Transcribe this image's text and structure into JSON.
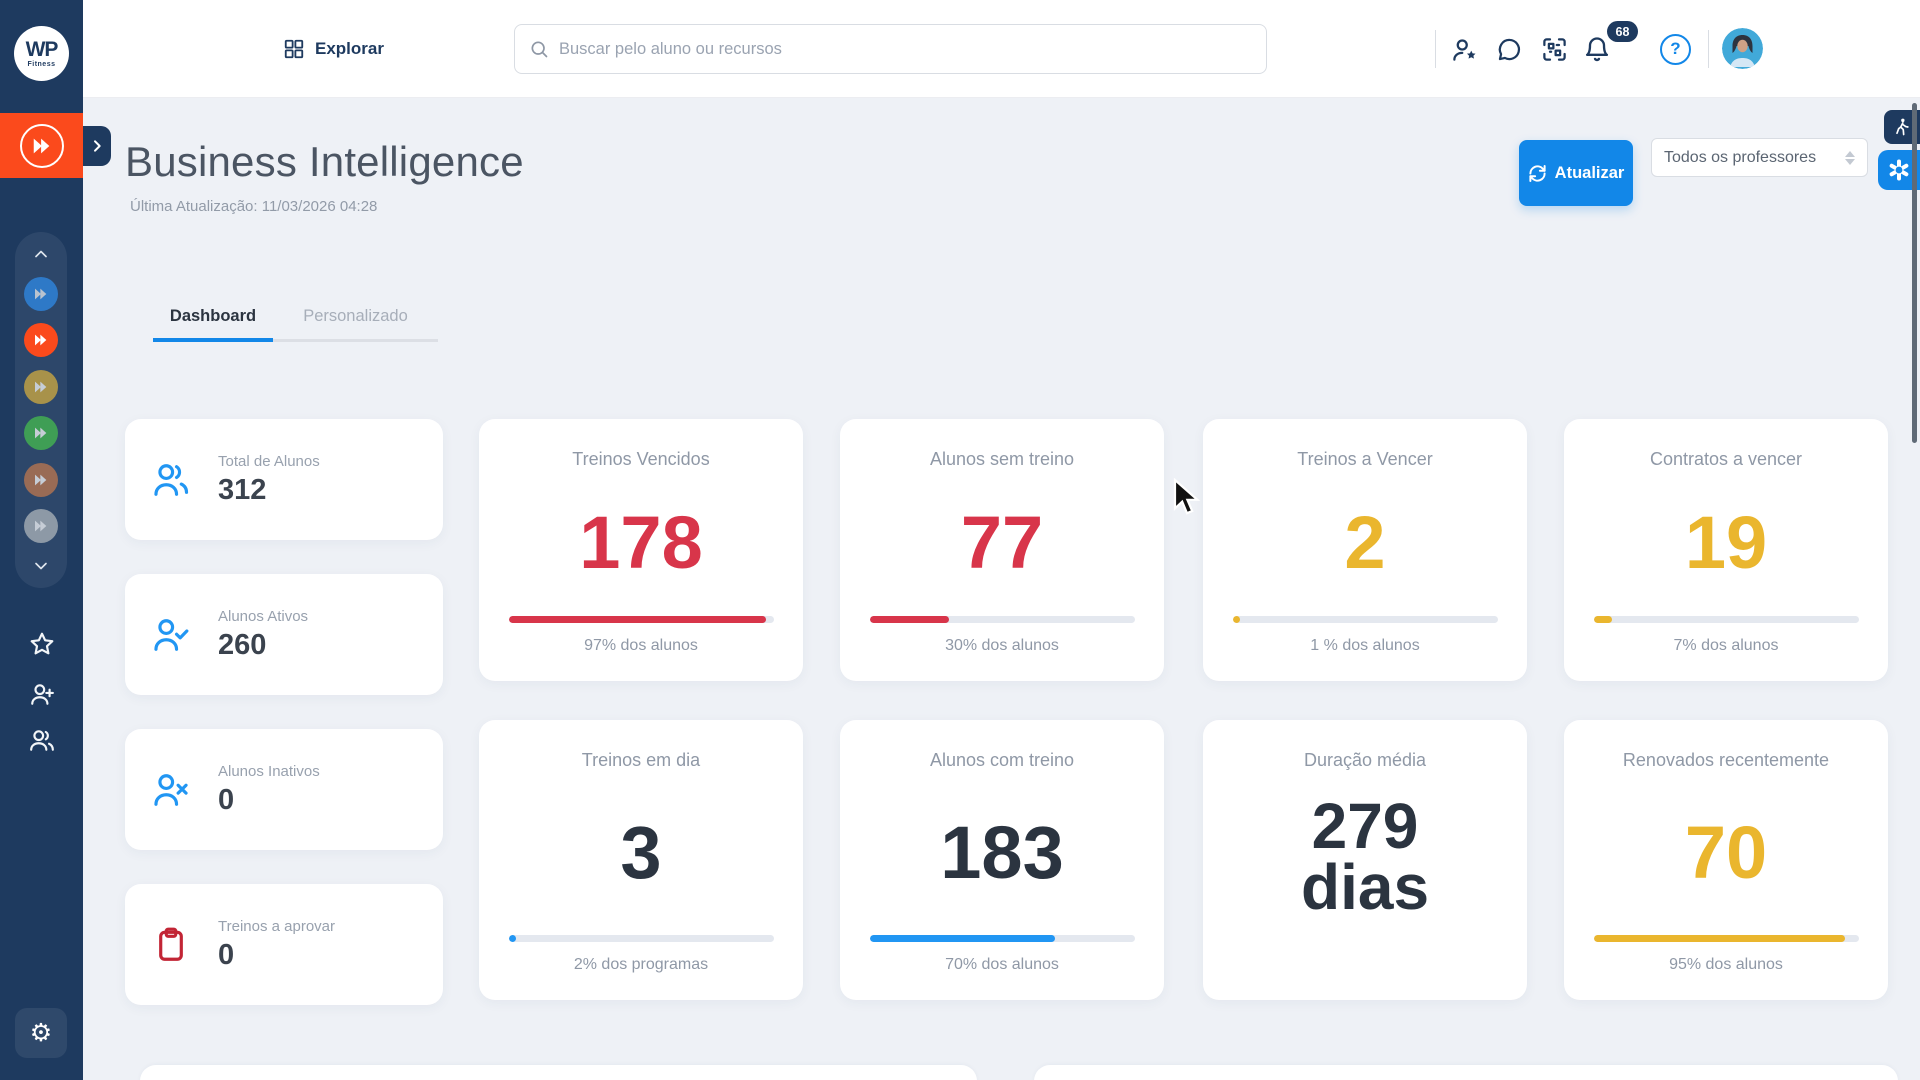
{
  "colors": {
    "sidebar_navy": "#1e3a5f",
    "accent_orange": "#fb4a1c",
    "primary_blue": "#1287e8",
    "icon_blue": "#2196f3",
    "danger_red": "#d8354a",
    "warning_yellow": "#eab62e",
    "dark_value": "#2b3440",
    "page_bg": "#eef1f6"
  },
  "brand": {
    "logo_top": "WP",
    "logo_bottom": "Fitness"
  },
  "icons": {
    "gear_glyph": "⚙",
    "help_glyph": "?"
  },
  "sidebar": {
    "workspaces": [
      {
        "name": "workspace-blue",
        "color": "#2e79c7"
      },
      {
        "name": "workspace-red-active",
        "color": "#fb4a1c"
      },
      {
        "name": "workspace-olive",
        "color": "#a8924a"
      },
      {
        "name": "workspace-green",
        "color": "#3f9e55"
      },
      {
        "name": "workspace-brown",
        "color": "#996b55"
      },
      {
        "name": "workspace-gray",
        "color": "#8d99a6"
      }
    ]
  },
  "topbar": {
    "explore_label": "Explorar",
    "search_placeholder": "Buscar pelo aluno ou recursos",
    "notification_count": "68"
  },
  "header": {
    "title": "Business Intelligence",
    "last_update": "Última Atualização: 11/03/2026 04:28",
    "refresh_label": "Atualizar",
    "professor_filter": "Todos os professores"
  },
  "tabs": {
    "dashboard": "Dashboard",
    "personalizado": "Personalizado"
  },
  "summary_cards": [
    {
      "label": "Total de Alunos",
      "value": "312"
    },
    {
      "label": "Alunos Ativos",
      "value": "260"
    },
    {
      "label": "Alunos Inativos",
      "value": "0"
    },
    {
      "label": "Treinos a aprovar",
      "value": "0"
    }
  ],
  "metric_cards": [
    {
      "title": "Treinos Vencidos",
      "value": "178",
      "tone": "red",
      "progress_pct": 97,
      "bar": "red",
      "caption": "97% dos alunos"
    },
    {
      "title": "Alunos sem treino",
      "value": "77",
      "tone": "red",
      "progress_pct": 30,
      "bar": "red",
      "caption": "30% dos alunos"
    },
    {
      "title": "Treinos a Vencer",
      "value": "2",
      "tone": "yellow",
      "progress_pct": 1,
      "bar": "yellow",
      "caption": "1 % dos alunos"
    },
    {
      "title": "Contratos a vencer",
      "value": "19",
      "tone": "yellow",
      "progress_pct": 7,
      "bar": "yellow",
      "caption": "7% dos alunos"
    },
    {
      "title": "Treinos em dia",
      "value": "3",
      "tone": "dark",
      "progress_pct": 2,
      "bar": "blue",
      "caption": "2% dos programas"
    },
    {
      "title": "Alunos com treino",
      "value": "183",
      "tone": "dark",
      "progress_pct": 70,
      "bar": "blue",
      "caption": "70% dos alunos"
    },
    {
      "title": "Duração média",
      "value": "279 dias",
      "tone": "dark"
    },
    {
      "title": "Renovados recentemente",
      "value": "70",
      "tone": "yellow",
      "progress_pct": 95,
      "bar": "yellow",
      "caption": "95% dos alunos"
    }
  ]
}
